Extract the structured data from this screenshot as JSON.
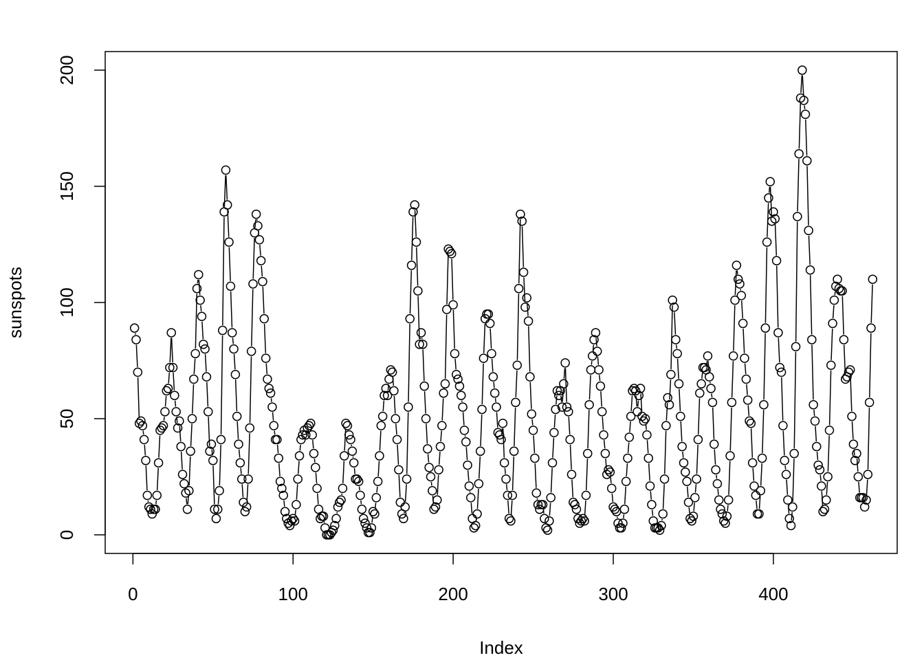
{
  "chart_data": {
    "type": "scatter",
    "plot_style": "b",
    "xlabel": "Index",
    "ylabel": "sunspots",
    "xlim": [
      1,
      459
    ],
    "ylim": [
      0,
      200
    ],
    "x_ticks": [
      0,
      100,
      200,
      300,
      400
    ],
    "y_ticks": [
      0,
      50,
      100,
      150,
      200
    ],
    "grid": false,
    "legend": "none",
    "point_color": "#000000",
    "line_color": "#000000",
    "series": [
      {
        "values": [
          89,
          84,
          70,
          48,
          49,
          47,
          41,
          32,
          17,
          12,
          11,
          9,
          11,
          11,
          17,
          31,
          45,
          46,
          47,
          53,
          62,
          63,
          72,
          87,
          72,
          60,
          53,
          46,
          49,
          38,
          26,
          22,
          18,
          11,
          19,
          36,
          50,
          67,
          78,
          106,
          112,
          101,
          94,
          82,
          80,
          68,
          53,
          36,
          39,
          32,
          11,
          7,
          11,
          19,
          41,
          88,
          139,
          157,
          142,
          126,
          107,
          87,
          80,
          69,
          51,
          39,
          31,
          24,
          14,
          10,
          12,
          24,
          46,
          79,
          108,
          130,
          138,
          133,
          127,
          118,
          109,
          93,
          76,
          67,
          63,
          61,
          55,
          47,
          41,
          41,
          33,
          23,
          20,
          17,
          10,
          7,
          5,
          4,
          6,
          7,
          6,
          13,
          24,
          34,
          41,
          43,
          45,
          43,
          46,
          47,
          48,
          43,
          35,
          29,
          20,
          11,
          7,
          8,
          8,
          3,
          0,
          0,
          0,
          1,
          2,
          4,
          7,
          12,
          14,
          15,
          20,
          34,
          48,
          47,
          43,
          41,
          36,
          31,
          24,
          24,
          23,
          17,
          11,
          7,
          5,
          3,
          1,
          1,
          3,
          10,
          9,
          16,
          23,
          34,
          47,
          51,
          60,
          63,
          60,
          67,
          71,
          70,
          62,
          50,
          41,
          28,
          14,
          9,
          7,
          12,
          24,
          55,
          93,
          116,
          139,
          142,
          126,
          105,
          82,
          87,
          82,
          64,
          50,
          37,
          29,
          25,
          19,
          11,
          12,
          15,
          28,
          38,
          47,
          61,
          65,
          97,
          123,
          122,
          121,
          99,
          78,
          69,
          67,
          64,
          60,
          55,
          45,
          40,
          30,
          21,
          16,
          7,
          3,
          4,
          9,
          22,
          36,
          54,
          76,
          93,
          95,
          95,
          91,
          78,
          68,
          61,
          55,
          44,
          43,
          41,
          48,
          31,
          24,
          17,
          7,
          6,
          17,
          36,
          57,
          73,
          106,
          138,
          135,
          113,
          98,
          102,
          92,
          68,
          52,
          45,
          33,
          18,
          13,
          11,
          13,
          13,
          7,
          3,
          2,
          6,
          16,
          31,
          44,
          54,
          62,
          60,
          62,
          55,
          65,
          74,
          55,
          53,
          41,
          26,
          14,
          13,
          11,
          7,
          5,
          6,
          7,
          6,
          17,
          35,
          56,
          71,
          77,
          84,
          87,
          79,
          71,
          64,
          53,
          43,
          35,
          26,
          28,
          27,
          20,
          12,
          11,
          10,
          5,
          3,
          3,
          5,
          11,
          23,
          33,
          42,
          51,
          62,
          63,
          62,
          53,
          60,
          63,
          51,
          49,
          50,
          43,
          33,
          21,
          13,
          6,
          3,
          3,
          3,
          2,
          4,
          9,
          24,
          47,
          59,
          56,
          69,
          101,
          98,
          84,
          78,
          65,
          51,
          38,
          31,
          27,
          23,
          14,
          7,
          6,
          8,
          16,
          24,
          41,
          61,
          65,
          72,
          72,
          71,
          77,
          68,
          63,
          57,
          39,
          28,
          22,
          15,
          11,
          9,
          6,
          5,
          8,
          15,
          34,
          57,
          77,
          101,
          116,
          110,
          108,
          103,
          91,
          76,
          67,
          58,
          49,
          48,
          31,
          21,
          17,
          9,
          9,
          19,
          33,
          56,
          89,
          126,
          145,
          152,
          135,
          139,
          136,
          118,
          87,
          72,
          70,
          47,
          32,
          26,
          15,
          7,
          4,
          12,
          35,
          81,
          137,
          164,
          188,
          200,
          187,
          181,
          161,
          131,
          114,
          84,
          56,
          49,
          38,
          30,
          28,
          21,
          10,
          11,
          15,
          25,
          45,
          73,
          91,
          101,
          107,
          110,
          106,
          105,
          105,
          84,
          67,
          68,
          70,
          71,
          51,
          39,
          32,
          35,
          25,
          16,
          16,
          16,
          12,
          15,
          26,
          57,
          89,
          110
        ]
      }
    ]
  }
}
